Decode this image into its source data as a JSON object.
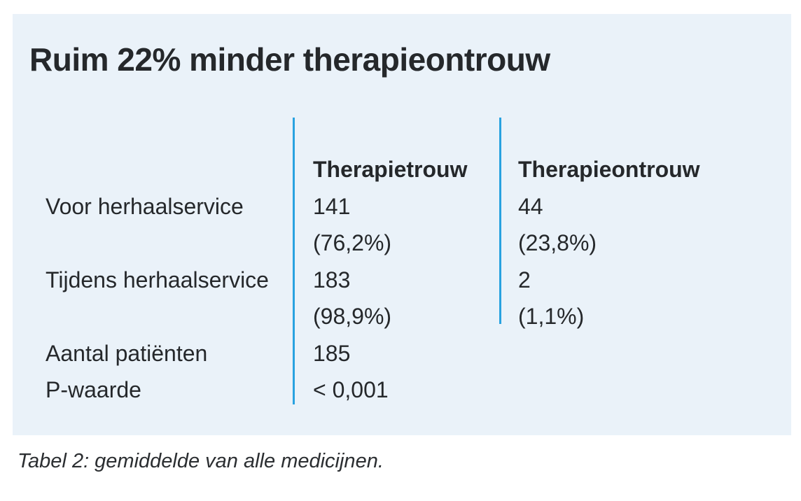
{
  "figure": {
    "title": "Ruim 22% minder therapieontrouw",
    "caption": "Tabel 2: gemiddelde van alle medicijnen."
  },
  "table": {
    "column_headers": {
      "therapietrouw": "Therapietrouw",
      "therapieontrouw": "Therapieontrouw"
    },
    "rows": [
      {
        "label": "Voor herhaalservice",
        "therapietrouw_n": "141",
        "therapietrouw_pct": "(76,2%)",
        "therapieontrouw_n": "44",
        "therapieontrouw_pct": "(23,8%)"
      },
      {
        "label": "Tijdens herhaalservice",
        "therapietrouw_n": "183",
        "therapietrouw_pct": "(98,9%)",
        "therapieontrouw_n": "2",
        "therapieontrouw_pct": "(1,1%)"
      },
      {
        "label": "Aantal patiënten",
        "therapietrouw_n": "185"
      },
      {
        "label": "P-waarde",
        "therapietrouw_n": "< 0,001"
      }
    ]
  },
  "chart_data": {
    "type": "table",
    "title": "Ruim 22% minder therapieontrouw",
    "columns": [
      "",
      "Therapietrouw",
      "Therapieontrouw"
    ],
    "rows": [
      [
        "Voor herhaalservice",
        "141 (76,2%)",
        "44 (23,8%)"
      ],
      [
        "Tijdens herhaalservice",
        "183 (98,9%)",
        "2 (1,1%)"
      ],
      [
        "Aantal patiënten",
        "185",
        ""
      ],
      [
        "P-waarde",
        "< 0,001",
        ""
      ]
    ],
    "caption": "Tabel 2: gemiddelde van alle medicijnen."
  },
  "colors": {
    "panel_bg": "#eaf2f9",
    "divider_blue": "#29a2e0",
    "text_dark": "#25282b",
    "page_bg": "#ffffff"
  }
}
